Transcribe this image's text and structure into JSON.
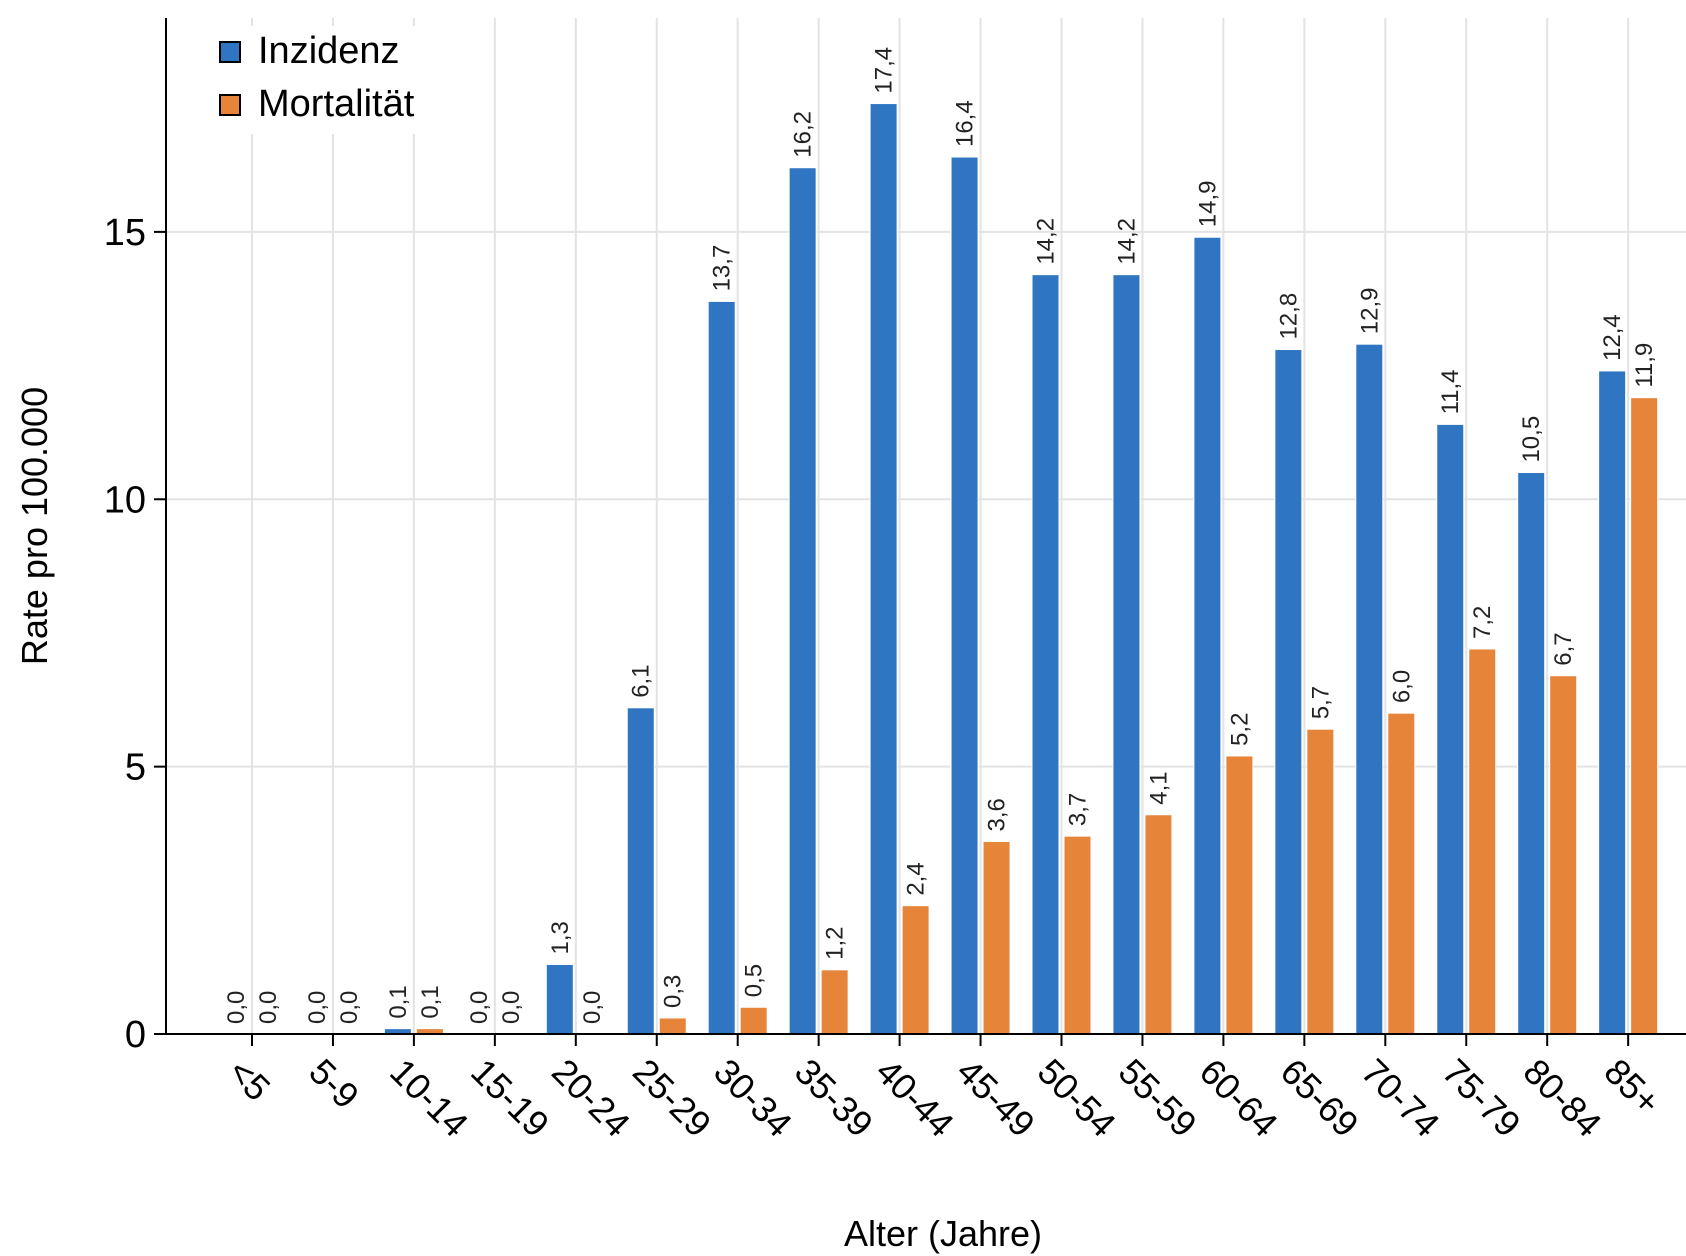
{
  "chart_data": {
    "type": "bar",
    "xlabel": "Alter (Jahre)",
    "ylabel": "Rate pro 100.000",
    "ylim": [
      0,
      19
    ],
    "yticks": [
      "0",
      "5",
      "10",
      "15"
    ],
    "grid": true,
    "legend_position": "top-left",
    "categories": [
      "<5",
      "5-9",
      "10-14",
      "15-19",
      "20-24",
      "25-29",
      "30-34",
      "35-39",
      "40-44",
      "45-49",
      "50-54",
      "55-59",
      "60-64",
      "65-69",
      "70-74",
      "75-79",
      "80-84",
      "85+"
    ],
    "series": [
      {
        "name": "Inzidenz",
        "color": "#2f75c2",
        "values": [
          0.0,
          0.0,
          0.1,
          0.0,
          1.3,
          6.1,
          13.7,
          16.2,
          17.4,
          16.4,
          14.2,
          14.2,
          14.9,
          12.8,
          12.9,
          11.4,
          10.5,
          12.4
        ],
        "labels": [
          "0,0",
          "0,0",
          "0,1",
          "0,0",
          "1,3",
          "6,1",
          "13,7",
          "16,2",
          "17,4",
          "16,4",
          "14,2",
          "14,2",
          "14,9",
          "12,8",
          "12,9",
          "11,4",
          "10,5",
          "12,4"
        ]
      },
      {
        "name": "Mortalität",
        "color": "#e6843a",
        "values": [
          0.0,
          0.0,
          0.1,
          0.0,
          0.0,
          0.3,
          0.5,
          1.2,
          2.4,
          3.6,
          3.7,
          4.1,
          5.2,
          5.7,
          6.0,
          7.2,
          6.7,
          11.9
        ],
        "labels": [
          "0,0",
          "0,0",
          "0,1",
          "0,0",
          "0,0",
          "0,3",
          "0,5",
          "1,2",
          "2,4",
          "3,6",
          "3,7",
          "4,1",
          "5,2",
          "5,7",
          "6,0",
          "7,2",
          "6,7",
          "11,9"
        ]
      }
    ]
  }
}
